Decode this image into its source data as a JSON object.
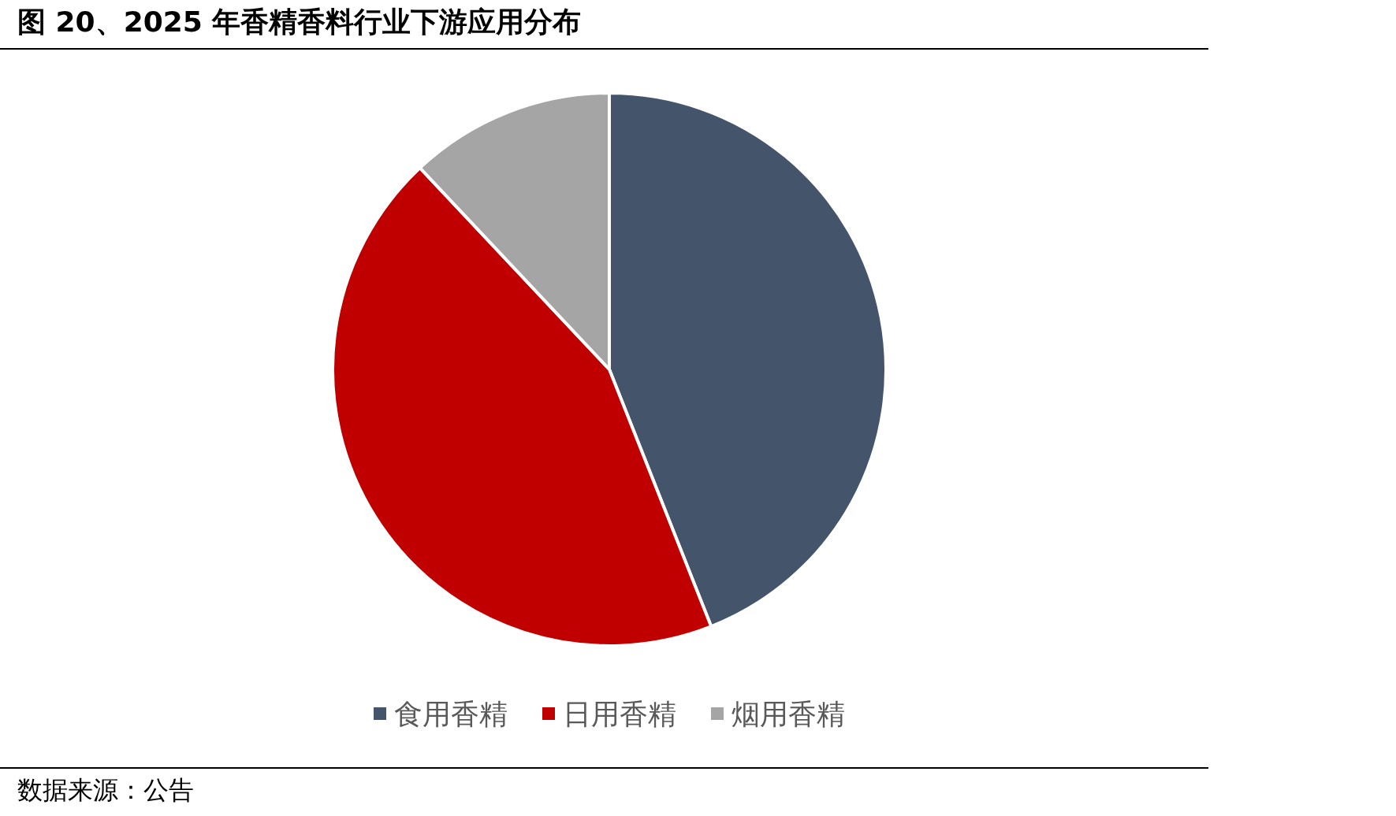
{
  "chart_data": {
    "type": "pie",
    "title": "图 20、2025 年香精香料行业下游应用分布",
    "categories": [
      "食用香精",
      "日用香精",
      "烟用香精"
    ],
    "values": [
      44,
      44,
      12
    ],
    "colors": [
      "#44546a",
      "#c00000",
      "#a5a5a5"
    ],
    "legend": "bottom",
    "annotations": [
      "数据来源：公告"
    ]
  }
}
